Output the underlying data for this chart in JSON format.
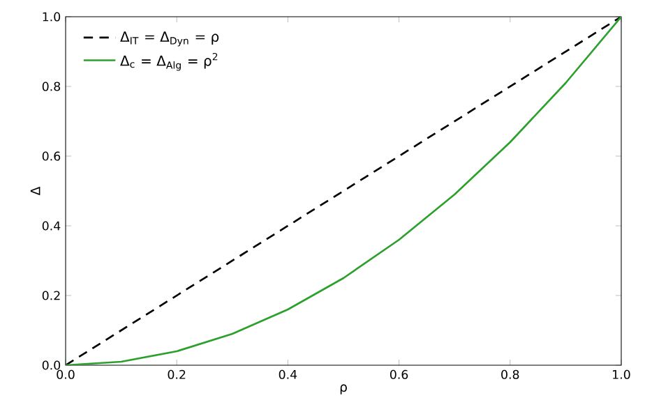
{
  "chart_data": {
    "type": "line",
    "xlabel": "ρ",
    "ylabel": "Δ",
    "xlim": [
      0,
      1
    ],
    "ylim": [
      0,
      1
    ],
    "xticks": [
      {
        "value": 0,
        "label": "0.0"
      },
      {
        "value": 0.2,
        "label": "0.2"
      },
      {
        "value": 0.4,
        "label": "0.4"
      },
      {
        "value": 0.6,
        "label": "0.6"
      },
      {
        "value": 0.8,
        "label": "0.8"
      },
      {
        "value": 1,
        "label": "1.0"
      }
    ],
    "yticks": [
      {
        "value": 0,
        "label": "0.0"
      },
      {
        "value": 0.2,
        "label": "0.2"
      },
      {
        "value": 0.4,
        "label": "0.4"
      },
      {
        "value": 0.6,
        "label": "0.6"
      },
      {
        "value": 0.8,
        "label": "0.8"
      },
      {
        "value": 1,
        "label": "1.0"
      }
    ],
    "grid": false,
    "legend": "top left",
    "marker": "none",
    "series": [
      {
        "name": "Δ$_{IT}$ = Δ$_{Dyn}$ = ρ",
        "color": "#000000",
        "line_style": "dashed",
        "x": [
          0,
          1
        ],
        "values": [
          0,
          1
        ]
      },
      {
        "name": "Δ$_{c}$ = Δ$_{Alg}$ = ρ$^{2}$",
        "color": "#2ca02c",
        "line_style": "solid",
        "x": [
          0,
          0.1,
          0.2,
          0.3,
          0.4,
          0.5,
          0.6,
          0.7,
          0.8,
          0.9,
          1
        ],
        "values": [
          0,
          0.01,
          0.04,
          0.09,
          0.16,
          0.25,
          0.36,
          0.49,
          0.64,
          0.81,
          1
        ]
      }
    ]
  }
}
